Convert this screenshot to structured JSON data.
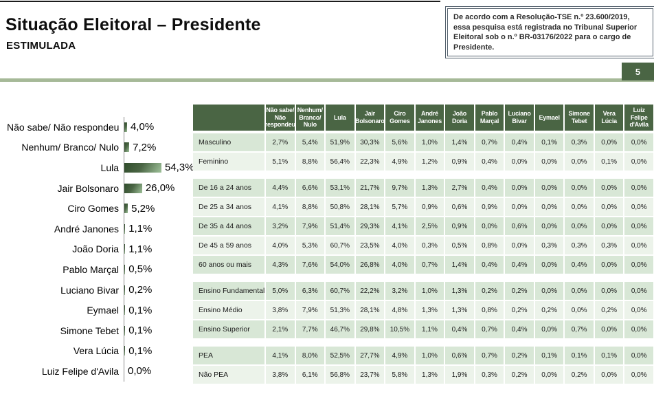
{
  "header": {
    "title": "Situação Eleitoral – Presidente",
    "subtitle": "ESTIMULADA"
  },
  "note_box": {
    "text": "De acordo com a Resolução-TSE n.º 23.600/2019, essa pesquisa está registrada no Tribunal Superior Eleitoral sob o n.º BR-03176/2022 para o cargo de Presidente."
  },
  "page_number": "5",
  "colors": {
    "header_green": "#4a6544",
    "row_green_dark": "#d8e7d6",
    "row_green_light": "#ecf3ea",
    "sage_divider": "#a6b998",
    "bar_gradient_dark": "#2f4c2b",
    "bar_gradient_light": "#9fc29a"
  },
  "chart_data": [
    {
      "type": "bar",
      "orientation": "horizontal",
      "title": "Situação Eleitoral – Presidente (Estimulada)",
      "categories": [
        "Não sabe/ Não respondeu",
        "Nenhum/ Branco/ Nulo",
        "Lula",
        "Jair Bolsonaro",
        "Ciro Gomes",
        "André Janones",
        "João Doria",
        "Pablo Marçal",
        "Luciano Bivar",
        "Eymael",
        "Simone Tebet",
        "Vera Lúcia",
        "Luiz Felipe d'Avila"
      ],
      "values": [
        4.0,
        7.2,
        54.3,
        26.0,
        5.2,
        1.1,
        1.1,
        0.5,
        0.2,
        0.1,
        0.1,
        0.1,
        0.0
      ],
      "labels": [
        "4,0%",
        "7,2%",
        "54,3%",
        "26,0%",
        "5,2%",
        "1,1%",
        "1,1%",
        "0,5%",
        "0,2%",
        "0,1%",
        "0,1%",
        "0,1%",
        "0,0%"
      ],
      "xlim": [
        0,
        60
      ],
      "grid": false,
      "legend": "none"
    },
    {
      "type": "table",
      "column_headers": [
        "Não sabe/ Não respondeu",
        "Nenhum/ Branco/ Nulo",
        "Lula",
        "Jair Bolsonaro",
        "Ciro Gomes",
        "André Janones",
        "João Doria",
        "Pablo Marçal",
        "Luciano Bivar",
        "Eymael",
        "Simone Tebet",
        "Vera Lúcia",
        "Luiz Felipe d'Avila"
      ],
      "groups": [
        {
          "rows": [
            {
              "label": "Masculino",
              "cells": [
                "2,7%",
                "5,4%",
                "51,9%",
                "30,3%",
                "5,6%",
                "1,0%",
                "1,4%",
                "0,7%",
                "0,4%",
                "0,1%",
                "0,3%",
                "0,0%",
                "0,0%"
              ]
            },
            {
              "label": "Feminino",
              "cells": [
                "5,1%",
                "8,8%",
                "56,4%",
                "22,3%",
                "4,9%",
                "1,2%",
                "0,9%",
                "0,4%",
                "0,0%",
                "0,0%",
                "0,0%",
                "0,1%",
                "0,0%"
              ]
            }
          ]
        },
        {
          "rows": [
            {
              "label": "De 16 a 24 anos",
              "cells": [
                "4,4%",
                "6,6%",
                "53,1%",
                "21,7%",
                "9,7%",
                "1,3%",
                "2,7%",
                "0,4%",
                "0,0%",
                "0,0%",
                "0,0%",
                "0,0%",
                "0,0%"
              ]
            },
            {
              "label": "De 25 a 34 anos",
              "cells": [
                "4,1%",
                "8,8%",
                "50,8%",
                "28,1%",
                "5,7%",
                "0,9%",
                "0,6%",
                "0,9%",
                "0,0%",
                "0,0%",
                "0,0%",
                "0,0%",
                "0,0%"
              ]
            },
            {
              "label": "De 35 a 44 anos",
              "cells": [
                "3,2%",
                "7,9%",
                "51,4%",
                "29,3%",
                "4,1%",
                "2,5%",
                "0,9%",
                "0,0%",
                "0,6%",
                "0,0%",
                "0,0%",
                "0,0%",
                "0,0%"
              ]
            },
            {
              "label": "De 45 a 59 anos",
              "cells": [
                "4,0%",
                "5,3%",
                "60,7%",
                "23,5%",
                "4,0%",
                "0,3%",
                "0,5%",
                "0,8%",
                "0,0%",
                "0,3%",
                "0,3%",
                "0,3%",
                "0,0%"
              ]
            },
            {
              "label": "60 anos ou mais",
              "cells": [
                "4,3%",
                "7,6%",
                "54,0%",
                "26,8%",
                "4,0%",
                "0,7%",
                "1,4%",
                "0,4%",
                "0,4%",
                "0,0%",
                "0,4%",
                "0,0%",
                "0,0%"
              ]
            }
          ]
        },
        {
          "rows": [
            {
              "label": "Ensino Fundamental",
              "cells": [
                "5,0%",
                "6,3%",
                "60,7%",
                "22,2%",
                "3,2%",
                "1,0%",
                "1,3%",
                "0,2%",
                "0,2%",
                "0,0%",
                "0,0%",
                "0,0%",
                "0,0%"
              ]
            },
            {
              "label": "Ensino Médio",
              "cells": [
                "3,8%",
                "7,9%",
                "51,3%",
                "28,1%",
                "4,8%",
                "1,3%",
                "1,3%",
                "0,8%",
                "0,2%",
                "0,2%",
                "0,0%",
                "0,2%",
                "0,0%"
              ]
            },
            {
              "label": "Ensino Superior",
              "cells": [
                "2,1%",
                "7,7%",
                "46,7%",
                "29,8%",
                "10,5%",
                "1,1%",
                "0,4%",
                "0,7%",
                "0,4%",
                "0,0%",
                "0,7%",
                "0,0%",
                "0,0%"
              ]
            }
          ]
        },
        {
          "rows": [
            {
              "label": "PEA",
              "cells": [
                "4,1%",
                "8,0%",
                "52,5%",
                "27,7%",
                "4,9%",
                "1,0%",
                "0,6%",
                "0,7%",
                "0,2%",
                "0,1%",
                "0,1%",
                "0,1%",
                "0,0%"
              ]
            },
            {
              "label": "Não PEA",
              "cells": [
                "3,8%",
                "6,1%",
                "56,8%",
                "23,7%",
                "5,8%",
                "1,3%",
                "1,9%",
                "0,3%",
                "0,2%",
                "0,0%",
                "0,2%",
                "0,0%",
                "0,0%"
              ]
            }
          ]
        }
      ]
    }
  ]
}
